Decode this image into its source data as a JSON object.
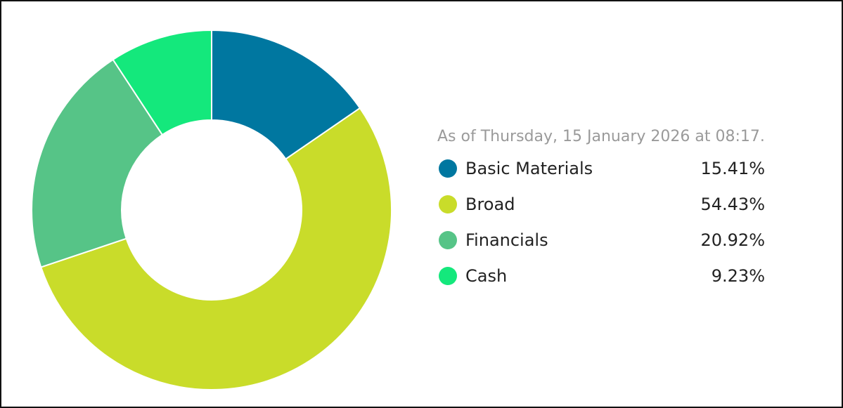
{
  "chart_data": {
    "type": "donut",
    "subtitle": "As of Thursday, 15 January 2026 at 08:17.",
    "categories": [
      "Basic Materials",
      "Broad",
      "Financials",
      "Cash"
    ],
    "values": [
      15.41,
      54.43,
      20.92,
      9.23
    ],
    "value_labels": [
      "15.41%",
      "54.43%",
      "20.92%",
      "9.23%"
    ],
    "colors": [
      "#0077a0",
      "#c9dc2a",
      "#56c487",
      "#14e87c"
    ]
  }
}
